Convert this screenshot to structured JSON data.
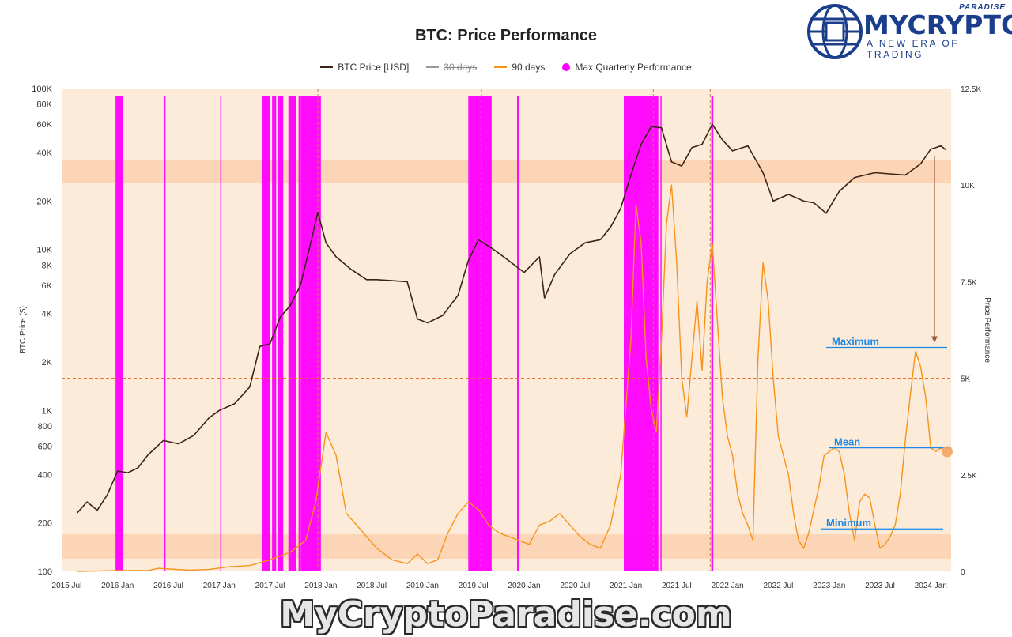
{
  "page": {
    "title": "BTC: Price Performance",
    "watermark": "MyCryptoParadise.com"
  },
  "logo": {
    "wordmark": "MYCRYPTO",
    "paradise": "PARADISE",
    "tagline": "A NEW ERA OF TRADING",
    "color": "#1a3e8c",
    "icon": "globe-chip-icon"
  },
  "legend": [
    {
      "label": "BTC Price [USD]",
      "color": "#3b2418",
      "marker": "line",
      "hidden": false
    },
    {
      "label": "30 days",
      "color": "#9a9a9a",
      "marker": "line",
      "hidden": true
    },
    {
      "label": "90 days",
      "color": "#f7931a",
      "marker": "line",
      "hidden": false
    },
    {
      "label": "Max Quarterly Performance",
      "color": "#ff00ff",
      "marker": "dot",
      "hidden": false
    }
  ],
  "annotations": {
    "maximum": "Maximum",
    "mean": "Mean",
    "minimum": "Minimum",
    "label_color": "#1e88e5"
  },
  "chart_data": {
    "type": "line",
    "title": "BTC: Price Performance",
    "xlabel": "",
    "ylabel": "BTC Price ($)",
    "y2label": "Price Performance",
    "y_scale": "log",
    "ylim": [
      100,
      100000
    ],
    "y2lim": [
      0,
      12500
    ],
    "x_ticks": [
      "2015 Jul",
      "2016 Jan",
      "2016 Jul",
      "2017 Jan",
      "2017 Jul",
      "2018 Jan",
      "2018 Jul",
      "2019 Jan",
      "2019 Jul",
      "2020 Jan",
      "2020 Jul",
      "2021 Jan",
      "2021 Jul",
      "2022 Jan",
      "2022 Jul",
      "2023 Jan",
      "2023 Jul",
      "2024 Jan"
    ],
    "y_ticks": [
      "100",
      "200",
      "400",
      "600",
      "800",
      "1K",
      "2K",
      "4K",
      "6K",
      "8K",
      "10K",
      "20K",
      "40K",
      "60K",
      "80K",
      "100K"
    ],
    "y_tick_values": [
      100,
      200,
      400,
      600,
      800,
      1000,
      2000,
      4000,
      6000,
      8000,
      10000,
      20000,
      40000,
      60000,
      80000,
      100000
    ],
    "y2_ticks": [
      "0",
      "2.5K",
      "5K",
      "7.5K",
      "10K",
      "12.5K"
    ],
    "y2_tick_values": [
      0,
      2500,
      5000,
      7500,
      10000,
      12500
    ],
    "x_range": [
      2015.45,
      2024.2
    ],
    "series": [
      {
        "name": "BTC Price [USD]",
        "axis": "left",
        "color": "#3b2418",
        "x": [
          2015.6,
          2015.7,
          2015.8,
          2015.9,
          2016.0,
          2016.1,
          2016.2,
          2016.3,
          2016.45,
          2016.6,
          2016.75,
          2016.9,
          2017.0,
          2017.15,
          2017.3,
          2017.4,
          2017.5,
          2017.6,
          2017.7,
          2017.8,
          2017.9,
          2017.97,
          2018.05,
          2018.15,
          2018.3,
          2018.45,
          2018.55,
          2018.7,
          2018.85,
          2018.95,
          2019.05,
          2019.2,
          2019.35,
          2019.45,
          2019.55,
          2019.7,
          2019.85,
          2020.0,
          2020.15,
          2020.2,
          2020.3,
          2020.45,
          2020.6,
          2020.75,
          2020.85,
          2020.95,
          2021.05,
          2021.15,
          2021.25,
          2021.35,
          2021.45,
          2021.55,
          2021.65,
          2021.75,
          2021.85,
          2021.95,
          2022.05,
          2022.2,
          2022.35,
          2022.45,
          2022.6,
          2022.75,
          2022.85,
          2022.97,
          2023.1,
          2023.25,
          2023.45,
          2023.6,
          2023.75,
          2023.9,
          2024.0,
          2024.1,
          2024.15
        ],
        "values": [
          230,
          270,
          240,
          300,
          420,
          410,
          440,
          530,
          650,
          620,
          700,
          900,
          1000,
          1100,
          1400,
          2500,
          2600,
          3800,
          4500,
          6000,
          11000,
          17000,
          11000,
          9000,
          7500,
          6500,
          6500,
          6400,
          6300,
          3700,
          3500,
          3900,
          5200,
          8500,
          11500,
          10000,
          8500,
          7200,
          9000,
          5000,
          7000,
          9400,
          11000,
          11500,
          13800,
          18000,
          29000,
          45000,
          58000,
          57000,
          35000,
          33000,
          43000,
          45000,
          60000,
          48000,
          41000,
          44000,
          30000,
          20000,
          22000,
          20000,
          19500,
          16800,
          23000,
          28000,
          30000,
          29500,
          29000,
          34000,
          42000,
          44000,
          41500
        ]
      },
      {
        "name": "90 days",
        "axis": "right",
        "color": "#f7931a",
        "x": [
          2015.6,
          2016.0,
          2016.3,
          2016.4,
          2016.7,
          2016.9,
          2017.1,
          2017.3,
          2017.5,
          2017.7,
          2017.85,
          2017.95,
          2018.05,
          2018.15,
          2018.25,
          2018.35,
          2018.45,
          2018.55,
          2018.7,
          2018.85,
          2018.95,
          2019.05,
          2019.15,
          2019.25,
          2019.35,
          2019.45,
          2019.55,
          2019.65,
          2019.75,
          2019.85,
          2019.95,
          2020.05,
          2020.15,
          2020.25,
          2020.35,
          2020.45,
          2020.55,
          2020.65,
          2020.75,
          2020.85,
          2020.95,
          2021.05,
          2021.1,
          2021.15,
          2021.2,
          2021.25,
          2021.3,
          2021.35,
          2021.4,
          2021.45,
          2021.5,
          2021.55,
          2021.6,
          2021.65,
          2021.7,
          2021.75,
          2021.8,
          2021.85,
          2021.9,
          2021.95,
          2022.0,
          2022.05,
          2022.1,
          2022.15,
          2022.2,
          2022.25,
          2022.3,
          2022.35,
          2022.4,
          2022.45,
          2022.5,
          2022.55,
          2022.6,
          2022.65,
          2022.7,
          2022.75,
          2022.8,
          2022.85,
          2022.9,
          2022.95,
          2023.0,
          2023.05,
          2023.1,
          2023.15,
          2023.2,
          2023.25,
          2023.3,
          2023.35,
          2023.4,
          2023.45,
          2023.5,
          2023.55,
          2023.6,
          2023.65,
          2023.7,
          2023.75,
          2023.8,
          2023.85,
          2023.9,
          2023.95,
          2024.0,
          2024.05,
          2024.1,
          2024.13
        ],
        "values": [
          0,
          20,
          20,
          80,
          30,
          50,
          120,
          150,
          300,
          500,
          800,
          1800,
          3600,
          3000,
          1500,
          1200,
          900,
          600,
          300,
          200,
          450,
          200,
          300,
          1000,
          1500,
          1800,
          1600,
          1200,
          1000,
          900,
          800,
          700,
          1200,
          1300,
          1500,
          1200,
          900,
          700,
          600,
          1200,
          2500,
          6000,
          9500,
          8500,
          5500,
          4200,
          3600,
          6000,
          9000,
          10000,
          8000,
          5000,
          4000,
          5500,
          7000,
          5200,
          7500,
          8500,
          6500,
          4500,
          3500,
          3000,
          2000,
          1500,
          1200,
          800,
          5500,
          8000,
          7000,
          5000,
          3500,
          3000,
          2500,
          1500,
          800,
          600,
          1000,
          1600,
          2200,
          3000,
          3100,
          3200,
          3100,
          2500,
          1500,
          800,
          1800,
          2000,
          1900,
          1200,
          600,
          700,
          900,
          1200,
          2000,
          3400,
          4600,
          5700,
          5300,
          4500,
          3200,
          3100,
          3200,
          3100
        ]
      }
    ],
    "max_quarterly_periods": [
      {
        "start": 2015.98,
        "end": 2016.05
      },
      {
        "start": 2016.46,
        "end": 2016.47
      },
      {
        "start": 2017.01,
        "end": 2017.02
      },
      {
        "start": 2017.42,
        "end": 2017.5
      },
      {
        "start": 2017.52,
        "end": 2017.56
      },
      {
        "start": 2017.58,
        "end": 2017.63
      },
      {
        "start": 2017.68,
        "end": 2017.76
      },
      {
        "start": 2017.78,
        "end": 2017.79
      },
      {
        "start": 2017.8,
        "end": 2018.0
      },
      {
        "start": 2019.45,
        "end": 2019.68
      },
      {
        "start": 2019.93,
        "end": 2019.95
      },
      {
        "start": 2020.98,
        "end": 2021.32
      },
      {
        "start": 2021.34,
        "end": 2021.35
      },
      {
        "start": 2021.84,
        "end": 2021.86
      }
    ],
    "mean_90d": 3200,
    "maximum_90d": 5800,
    "minimum_90d": 1100,
    "threshold_right_value": 5000,
    "event_markers_x": [
      2017.97,
      2019.58,
      2021.27,
      2021.83
    ],
    "current_point": {
      "x": 2024.13,
      "value": 3100
    },
    "bands_left": [
      [
        26000,
        36000
      ],
      [
        120,
        170
      ]
    ]
  }
}
